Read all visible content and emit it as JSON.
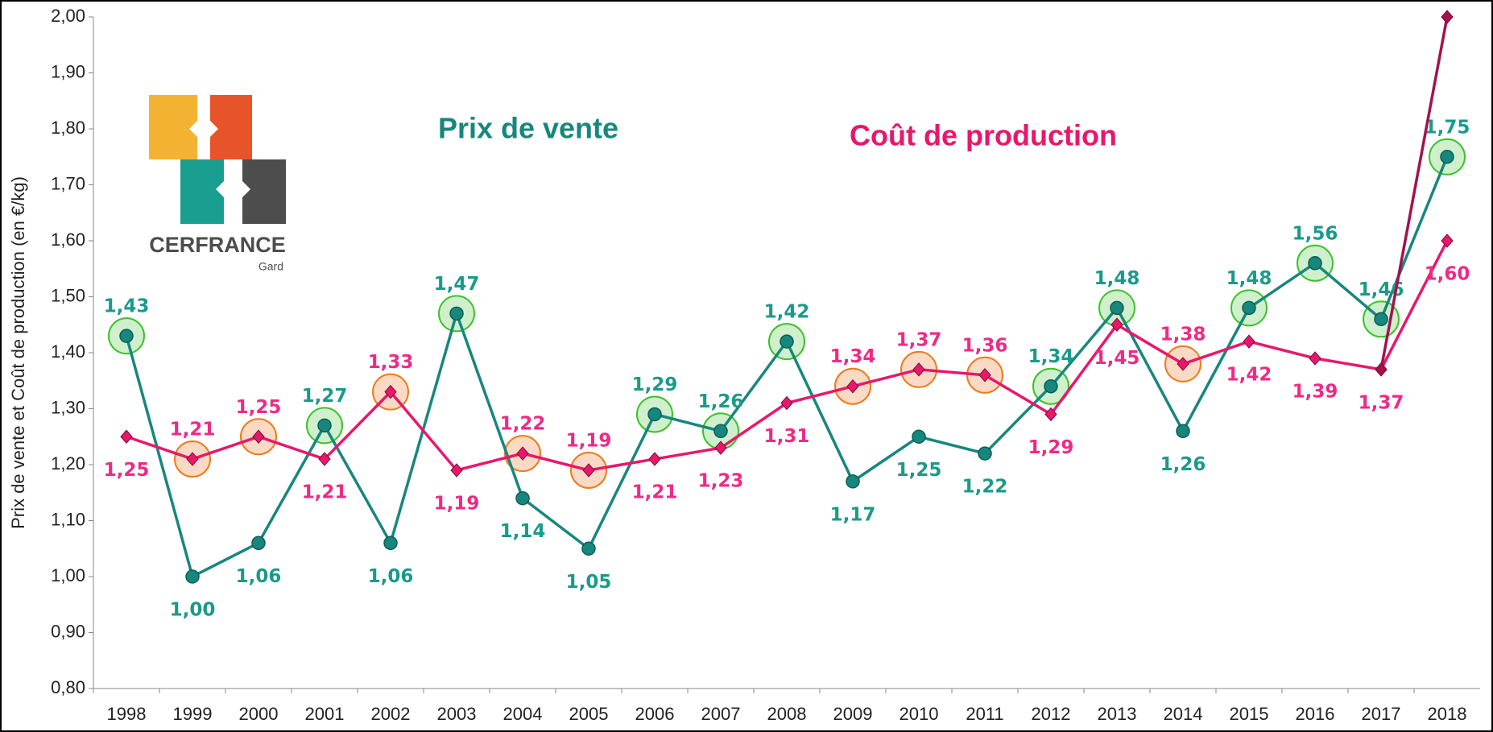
{
  "chart_data": {
    "type": "line",
    "ylabel": "Prix de vente et Coût de production (en €/kg)",
    "categories": [
      "1998",
      "1999",
      "2000",
      "2001",
      "2002",
      "2003",
      "2004",
      "2005",
      "2006",
      "2007",
      "2008",
      "2009",
      "2010",
      "2011",
      "2012",
      "2013",
      "2014",
      "2015",
      "2016",
      "2017",
      "2018"
    ],
    "series": [
      {
        "name": "Prix de vente",
        "color": "#17877d",
        "values": [
          1.43,
          1.0,
          1.06,
          1.27,
          1.06,
          1.47,
          1.14,
          1.05,
          1.29,
          1.26,
          1.42,
          1.17,
          1.25,
          1.22,
          1.34,
          1.48,
          1.26,
          1.48,
          1.56,
          1.46,
          1.75
        ],
        "value_labels": [
          "1,43",
          "1,00",
          "1,06",
          "1,27",
          "1,06",
          "1,47",
          "1,14",
          "1,05",
          "1,29",
          "1,26",
          "1,42",
          "1,17",
          "1,25",
          "1,22",
          "1,34",
          "1,48",
          "1,26",
          "1,48",
          "1,56",
          "1,46",
          "1,75"
        ]
      },
      {
        "name": "Coût de production",
        "color": "#e8176b",
        "values": [
          1.25,
          1.21,
          1.25,
          1.21,
          1.33,
          1.19,
          1.22,
          1.19,
          1.21,
          1.23,
          1.31,
          1.34,
          1.37,
          1.36,
          1.29,
          1.45,
          1.38,
          1.42,
          1.39,
          1.37,
          1.6
        ],
        "value_labels": [
          "1,25",
          "1,21",
          "1,25",
          "1,21",
          "1,33",
          "1,19",
          "1,22",
          "1,19",
          "1,21",
          "1,23",
          "1,31",
          "1,34",
          "1,37",
          "1,36",
          "1,29",
          "1,45",
          "1,38",
          "1,42",
          "1,39",
          "1,37",
          "1,60"
        ]
      },
      {
        "color": "#a3124f",
        "values": [
          null,
          null,
          null,
          null,
          null,
          null,
          null,
          null,
          null,
          null,
          null,
          null,
          null,
          null,
          null,
          null,
          null,
          null,
          null,
          1.37,
          2.0
        ],
        "value_labels": [
          null,
          null,
          null,
          null,
          null,
          null,
          null,
          null,
          null,
          null,
          null,
          null,
          null,
          null,
          null,
          null,
          null,
          null,
          null,
          null,
          "2,00"
        ]
      }
    ],
    "ylim": [
      0.8,
      2.0
    ],
    "yticks": [
      {
        "value": 0.8,
        "label": "0,80"
      },
      {
        "value": 0.9,
        "label": "0,90"
      },
      {
        "value": 1.0,
        "label": "1,00"
      },
      {
        "value": 1.1,
        "label": "1,10"
      },
      {
        "value": 1.2,
        "label": "1,20"
      },
      {
        "value": 1.3,
        "label": "1,30"
      },
      {
        "value": 1.4,
        "label": "1,40"
      },
      {
        "value": 1.5,
        "label": "1,50"
      },
      {
        "value": 1.6,
        "label": "1,60"
      },
      {
        "value": 1.7,
        "label": "1,70"
      },
      {
        "value": 1.8,
        "label": "1,80"
      },
      {
        "value": 1.9,
        "label": "1,90"
      },
      {
        "value": 2.0,
        "label": "2,00"
      }
    ]
  },
  "logo": {
    "name": "CERFRANCE",
    "sub": "Gard"
  }
}
